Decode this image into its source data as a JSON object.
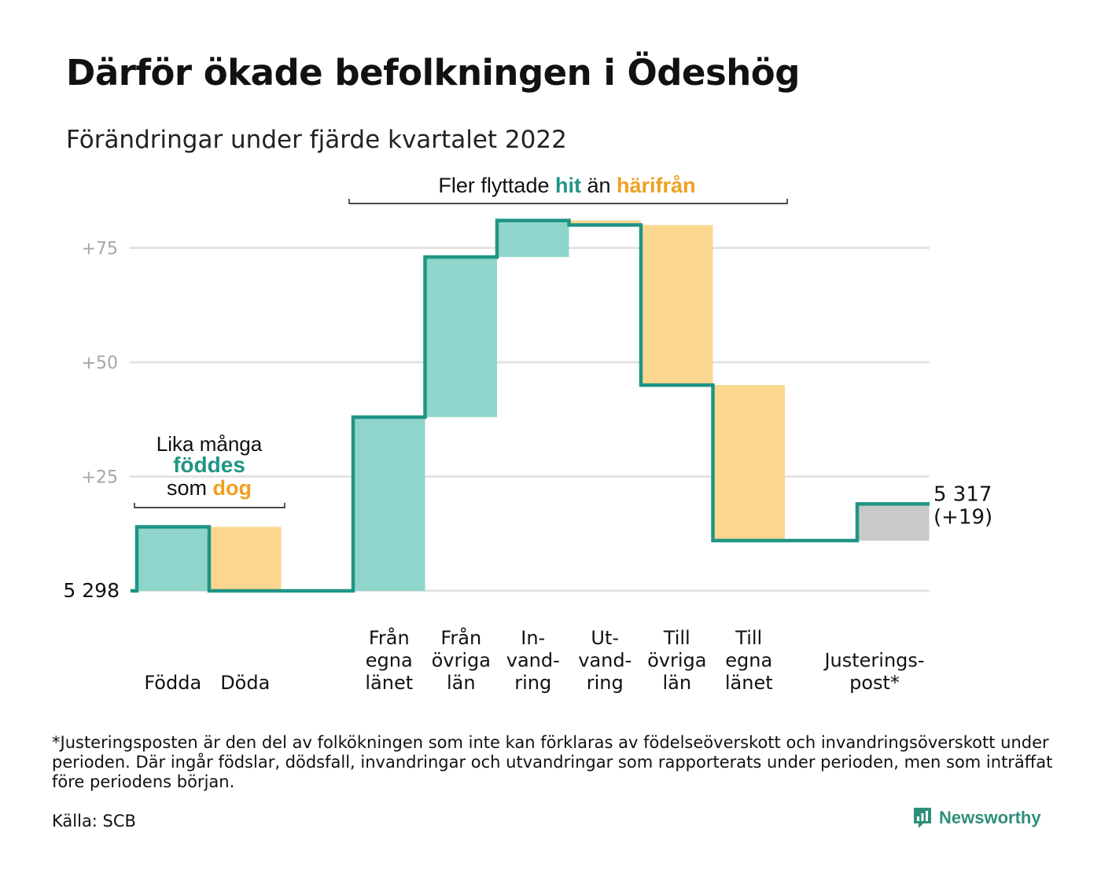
{
  "title": "Därför ökade befolkningen i Ödeshög",
  "subtitle": "Förändringar under fjärde kvartalet 2022",
  "chart_data": {
    "type": "waterfall",
    "baseline_label": "5 298",
    "end_label_value": "5 317",
    "end_label_change": "(+19)",
    "y_ticks": [
      {
        "value": 25,
        "label": "+25"
      },
      {
        "value": 50,
        "label": "+50"
      },
      {
        "value": 75,
        "label": "+75"
      }
    ],
    "steps": [
      {
        "category": "Födda",
        "label_lines": [
          "Födda"
        ],
        "change": 14,
        "kind": "in"
      },
      {
        "category": "Döda",
        "label_lines": [
          "Döda"
        ],
        "change": -14,
        "kind": "out"
      },
      {
        "category": "Från egna länet",
        "label_lines": [
          "Från",
          "egna",
          "länet"
        ],
        "change": 38,
        "kind": "in"
      },
      {
        "category": "Från övriga län",
        "label_lines": [
          "Från",
          "övriga",
          "län"
        ],
        "change": 35,
        "kind": "in"
      },
      {
        "category": "Invandring",
        "label_lines": [
          "In-",
          "vand-",
          "ring"
        ],
        "change": 8,
        "kind": "in"
      },
      {
        "category": "Utvandring",
        "label_lines": [
          "Ut-",
          "vand-",
          "ring"
        ],
        "change": -1,
        "kind": "out"
      },
      {
        "category": "Till övriga län",
        "label_lines": [
          "Till",
          "övriga",
          "län"
        ],
        "change": -35,
        "kind": "out"
      },
      {
        "category": "Till egna länet",
        "label_lines": [
          "Till",
          "egna",
          "länet"
        ],
        "change": -34,
        "kind": "out"
      },
      {
        "category": "Justeringspost*",
        "label_lines": [
          "Justerings-",
          "post*"
        ],
        "change": 8,
        "kind": "adjustment"
      }
    ],
    "annotations": {
      "born_died": {
        "line1": "Lika många",
        "line2": "föddes",
        "line3_prefix": "som",
        "line3_highlight": "dog"
      },
      "migration": {
        "prefix": "Fler flyttade",
        "hit": "hit",
        "middle": "än",
        "harifran": "härifrån"
      }
    },
    "colors": {
      "in_fill": "#8fd5cb",
      "out_fill": "#fbd78f",
      "adjustment_fill": "#c9c9c9",
      "step_line": "#1f9584",
      "grid": "#e3e3e3",
      "tick_text": "#a6a6a6",
      "teal_text": "#1f9584",
      "orange_text": "#f0a020"
    }
  },
  "footnote": "*Justeringsposten är den del av folkökningen som inte kan förklaras av födelseöverskott och invandringsöverskott under perioden. Där ingår födslar, dödsfall, invandringar och utvandringar som rapporterats under perioden, men som inträffat före periodens början.",
  "source": "Källa: SCB",
  "brand": {
    "name": "Newsworthy",
    "icon": "newsworthy-logo-icon",
    "color": "#2f8f79"
  }
}
